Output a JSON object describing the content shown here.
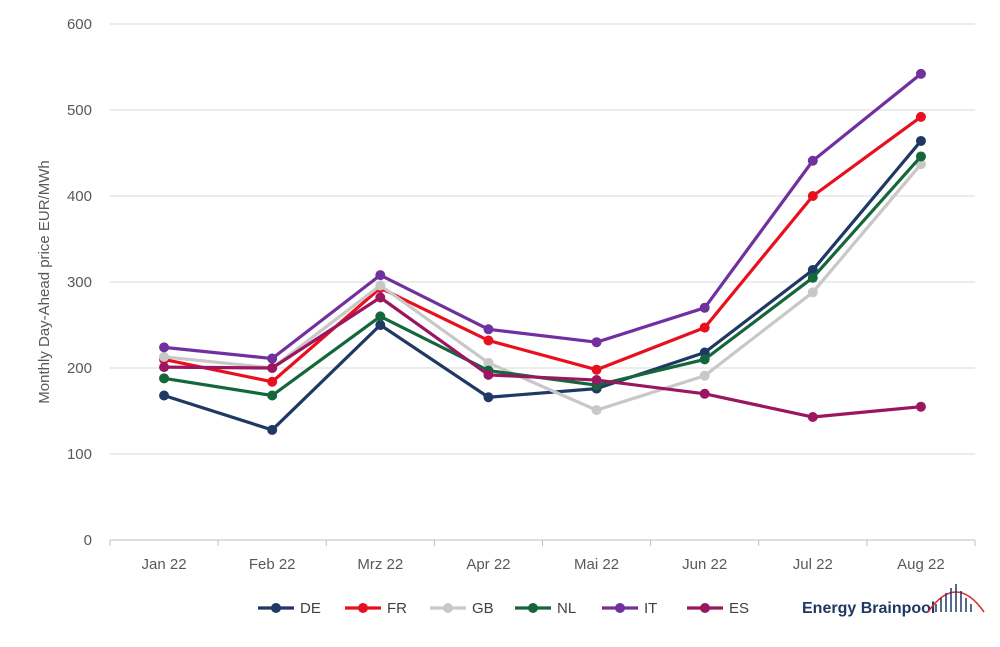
{
  "chart_data": {
    "type": "line",
    "ylabel": "Monthly Day-Ahead price EUR/MWh",
    "xlabel": "",
    "categories": [
      "Jan 22",
      "Feb 22",
      "Mrz 22",
      "Apr 22",
      "Mai 22",
      "Jun 22",
      "Jul 22",
      "Aug 22"
    ],
    "ylim": [
      0,
      600
    ],
    "yticks": [
      "0",
      "100",
      "200",
      "300",
      "400",
      "500",
      "600"
    ],
    "grid": true,
    "legend_position": "bottom",
    "series": [
      {
        "name": "DE",
        "color": "#1f3864",
        "values": [
          168,
          128,
          250,
          166,
          176,
          218,
          314,
          464
        ]
      },
      {
        "name": "FR",
        "color": "#e8101e",
        "values": [
          210,
          184,
          293,
          232,
          198,
          247,
          400,
          492
        ]
      },
      {
        "name": "GB",
        "color": "#c8c8c8",
        "values": [
          213,
          200,
          296,
          206,
          151,
          191,
          288,
          437
        ]
      },
      {
        "name": "NL",
        "color": "#13673b",
        "values": [
          188,
          168,
          260,
          197,
          180,
          210,
          305,
          446
        ]
      },
      {
        "name": "IT",
        "color": "#7030a0",
        "values": [
          224,
          211,
          308,
          245,
          230,
          270,
          441,
          542
        ]
      },
      {
        "name": "ES",
        "color": "#9b1660",
        "values": [
          201,
          200,
          282,
          192,
          186,
          170,
          143,
          155
        ]
      }
    ]
  },
  "brand": {
    "name": "Energy Brainpool",
    "logo_icon": "brainpool-logo-icon"
  }
}
